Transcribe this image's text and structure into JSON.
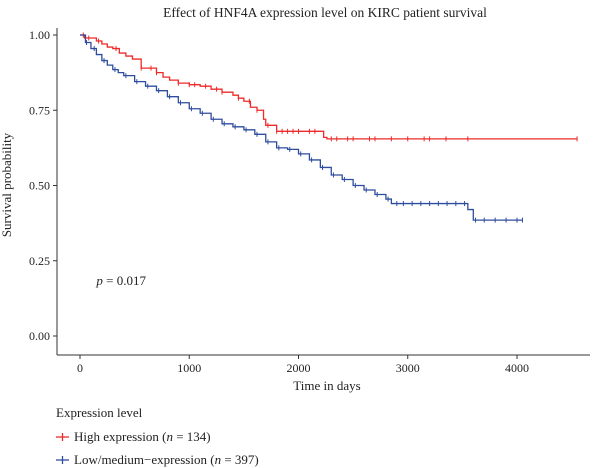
{
  "chart_data": {
    "type": "line",
    "title": "Effect of HNF4A expression level on KIRC patient survival",
    "xlabel": "Time in days",
    "ylabel": "Survival probability",
    "xlim": [
      0,
      4700
    ],
    "ylim": [
      0,
      1.0
    ],
    "xticks": [
      0,
      1000,
      2000,
      3000,
      4000
    ],
    "yticks": [
      0.0,
      0.25,
      0.5,
      0.75,
      1.0
    ],
    "xtick_labels": [
      "0",
      "1000",
      "2000",
      "3000",
      "4000"
    ],
    "ytick_labels": [
      "0.00",
      "0.25",
      "0.50",
      "0.75",
      "1.00"
    ],
    "annotation": {
      "prefix": "p",
      "text": " = 0.017",
      "x": 150,
      "y": 0.17
    },
    "grid": false,
    "legend": {
      "placement": "bottom-left",
      "title": "Expression level",
      "entries": [
        {
          "label_prefix": "High expression (",
          "label_n_var": "n",
          "label_suffix": " = 134)"
        },
        {
          "label_prefix": "Low/medium−expression (",
          "label_n_var": "n",
          "label_suffix": " = 397)"
        }
      ]
    },
    "series": [
      {
        "name": "High expression",
        "color": "#ee2a2a",
        "x": [
          0,
          40,
          100,
          150,
          200,
          250,
          300,
          360,
          420,
          480,
          560,
          700,
          760,
          820,
          900,
          1000,
          1100,
          1200,
          1300,
          1400,
          1450,
          1500,
          1560,
          1620,
          1680,
          1700,
          1800,
          2000,
          2200,
          2230,
          2260,
          2400,
          2700,
          3000,
          3500,
          4000,
          4550
        ],
        "y": [
          1.0,
          0.99,
          0.99,
          0.98,
          0.97,
          0.96,
          0.955,
          0.94,
          0.93,
          0.92,
          0.89,
          0.875,
          0.86,
          0.85,
          0.84,
          0.835,
          0.83,
          0.82,
          0.81,
          0.8,
          0.79,
          0.78,
          0.76,
          0.75,
          0.72,
          0.7,
          0.68,
          0.68,
          0.68,
          0.66,
          0.655,
          0.655,
          0.655,
          0.655,
          0.655,
          0.655,
          0.655
        ],
        "censor_x": [
          30,
          80,
          170,
          330,
          560,
          650,
          700,
          900,
          1000,
          1050,
          1150,
          1250,
          1300,
          1450,
          1550,
          1620,
          1720,
          1800,
          1850,
          1900,
          1950,
          2000,
          2100,
          2150,
          2300,
          2350,
          2450,
          2500,
          2650,
          2700,
          2850,
          3000,
          3150,
          3200,
          3350,
          3550,
          4550
        ]
      },
      {
        "name": "Low/medium−expression",
        "color": "#2f4d9e",
        "x": [
          0,
          50,
          100,
          150,
          200,
          250,
          300,
          350,
          400,
          500,
          600,
          700,
          800,
          900,
          1000,
          1100,
          1200,
          1300,
          1400,
          1500,
          1600,
          1700,
          1800,
          1900,
          2000,
          2100,
          2200,
          2300,
          2400,
          2500,
          2600,
          2700,
          2800,
          2850,
          2900,
          3000,
          3200,
          3400,
          3550,
          3600,
          3700,
          4000,
          4050
        ],
        "y": [
          1.0,
          0.975,
          0.955,
          0.935,
          0.915,
          0.9,
          0.885,
          0.875,
          0.865,
          0.845,
          0.83,
          0.815,
          0.795,
          0.775,
          0.755,
          0.74,
          0.72,
          0.705,
          0.695,
          0.685,
          0.67,
          0.645,
          0.625,
          0.62,
          0.605,
          0.585,
          0.56,
          0.535,
          0.52,
          0.5,
          0.485,
          0.47,
          0.455,
          0.44,
          0.44,
          0.44,
          0.44,
          0.44,
          0.42,
          0.385,
          0.385,
          0.385,
          0.385
        ],
        "censor_x": [
          60,
          130,
          220,
          320,
          420,
          520,
          620,
          720,
          820,
          920,
          1020,
          1120,
          1220,
          1320,
          1420,
          1520,
          1620,
          1720,
          1820,
          1920,
          2020,
          2120,
          2220,
          2320,
          2420,
          2520,
          2620,
          2720,
          2820,
          2900,
          2960,
          3040,
          3120,
          3200,
          3280,
          3360,
          3440,
          3520,
          3620,
          3700,
          3800,
          3900,
          4000,
          4050
        ]
      }
    ]
  }
}
